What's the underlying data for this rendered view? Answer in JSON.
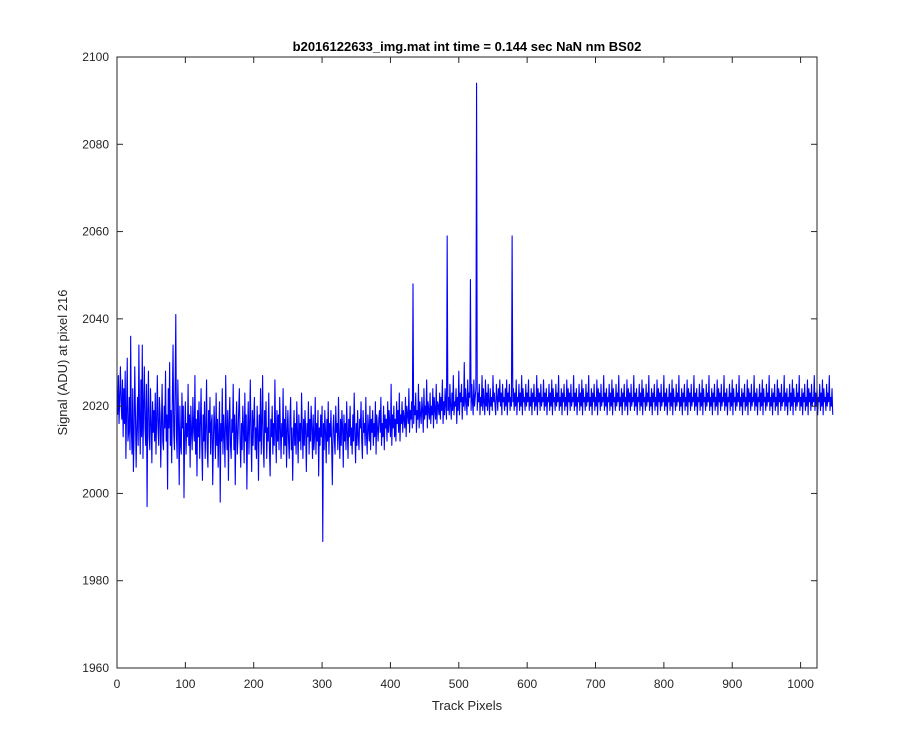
{
  "chart_data": {
    "type": "line",
    "title": "b2016122633_img.mat int time = 0.144 sec  NaN nm BS02",
    "xlabel": "Track Pixels",
    "ylabel": "Signal (ADU) at pixel 216",
    "xlim": [
      0,
      1024
    ],
    "ylim": [
      1960,
      2100
    ],
    "x_ticks": [
      0,
      100,
      200,
      300,
      400,
      500,
      600,
      700,
      800,
      900,
      1000
    ],
    "y_ticks": [
      1960,
      1980,
      2000,
      2020,
      2040,
      2060,
      2080,
      2100
    ],
    "grid": false,
    "box": true,
    "line_color": "#0000ff",
    "series": [
      {
        "x_start": 1,
        "x_step": 1,
        "values": [
          2018,
          2027,
          2016,
          2022,
          2029,
          2021,
          2017,
          2026,
          2013,
          2024,
          2016,
          2028,
          2008,
          2019,
          2031,
          2012,
          2014,
          2022,
          2010,
          2036,
          2015,
          2009,
          2024,
          2005,
          2014,
          2029,
          2018,
          2006,
          2015,
          2022,
          2011,
          2034,
          2017,
          2009,
          2026,
          2013,
          2034,
          2008,
          2020,
          2029,
          2015,
          2011,
          2025,
          1997,
          2019,
          2028,
          2013,
          2010,
          2024,
          2016,
          2007,
          2021,
          2014,
          2019,
          2012,
          2023,
          2009,
          2017,
          2027,
          2015,
          2011,
          2022,
          2018,
          2006,
          2016,
          2025,
          2012,
          2010,
          2020,
          2015,
          2028,
          2012,
          2018,
          2001,
          2024,
          2015,
          2030,
          2011,
          2019,
          2007,
          2022,
          2034,
          2014,
          2010,
          2024,
          2041,
          2013,
          2008,
          2026,
          2016,
          2002,
          2020,
          2011,
          2009,
          2023,
          2015,
          2020,
          1999,
          2014,
          2021,
          2009,
          2016,
          2013,
          2025,
          2011,
          2018,
          2006,
          2020,
          2014,
          2010,
          2022,
          2015,
          2012,
          2027,
          2009,
          2017,
          2004,
          2019,
          2013,
          2021,
          2008,
          2016,
          2024,
          2011,
          2003,
          2018,
          2012,
          2021,
          2008,
          2015,
          2026,
          2010,
          2006,
          2019,
          2014,
          2022,
          2009,
          2016,
          2018,
          2002,
          2012,
          2020,
          2015,
          2008,
          2023,
          2011,
          2017,
          2006,
          2014,
          2021,
          1998,
          2016,
          2012,
          2024,
          2009,
          2018,
          2013,
          2006,
          2027,
          2015,
          2010,
          2019,
          2003,
          2016,
          2022,
          2011,
          2008,
          2017,
          2014,
          2025,
          2010,
          2018,
          2002,
          2015,
          2021,
          2009,
          2013,
          2019,
          2024,
          2012,
          2006,
          2016,
          2010,
          2020,
          2015,
          2007,
          2023,
          2012,
          2018,
          2001,
          2014,
          2021,
          2009,
          2016,
          2026,
          2013,
          2005,
          2019,
          2011,
          2017,
          2022,
          2010,
          2015,
          2008,
          2020,
          2014,
          2003,
          2018,
          2012,
          2024,
          2009,
          2016,
          2027,
          2011,
          2006,
          2019,
          2014,
          2021,
          2008,
          2015,
          2012,
          2023,
          2010,
          2004,
          2017,
          2013,
          2020,
          2009,
          2016,
          2011,
          2026,
          2014,
          2007,
          2019,
          2012,
          2018,
          2010,
          2022,
          2015,
          2008,
          2016,
          2013,
          2024,
          2009,
          2017,
          2011,
          2020,
          2006,
          2014,
          2019,
          2012,
          2008,
          2017,
          2022,
          2010,
          2015,
          2003,
          2013,
          2019,
          2011,
          2016,
          2009,
          2021,
          2014,
          2007,
          2018,
          2012,
          2016,
          2010,
          2023,
          2015,
          2008,
          2017,
          2011,
          2019,
          2014,
          2005,
          2016,
          2013,
          2021,
          2009,
          2017,
          2012,
          2020,
          2015,
          2008,
          2018,
          2010,
          2013,
          2022,
          2009,
          2016,
          2012,
          2019,
          2004,
          2015,
          2011,
          2018,
          2013,
          2020,
          1989,
          2016,
          2010,
          2019,
          2014,
          2007,
          2017,
          2012,
          2021,
          2009,
          2016,
          2013,
          2019,
          2011,
          2002,
          2015,
          2018,
          2012,
          2009,
          2020,
          2014,
          2016,
          2010,
          2022,
          2013,
          2008,
          2017,
          2011,
          2019,
          2015,
          2006,
          2018,
          2012,
          2016,
          2010,
          2021,
          2014,
          2008,
          2017,
          2013,
          2020,
          2011,
          2015,
          2009,
          2018,
          2012,
          2023,
          2014,
          2007,
          2016,
          2011,
          2019,
          2013,
          2010,
          2017,
          2015,
          2021,
          2012,
          2008,
          2019,
          2014,
          2016,
          2011,
          2022,
          2013,
          2009,
          2018,
          2015,
          2012,
          2020,
          2010,
          2017,
          2014,
          2019,
          2011,
          2016,
          2013,
          2021,
          2009,
          2018,
          2015,
          2012,
          2017,
          2019,
          2014,
          2022,
          2011,
          2016,
          2013,
          2020,
          2010,
          2018,
          2015,
          2017,
          2012,
          2021,
          2014,
          2019,
          2016,
          2013,
          2025,
          2011,
          2018,
          2015,
          2020,
          2013,
          2017,
          2012,
          2021,
          2016,
          2019,
          2014,
          2023,
          2012,
          2018,
          2016,
          2021,
          2014,
          2019,
          2017,
          2015,
          2022,
          2013,
          2020,
          2018,
          2016,
          2024,
          2014,
          2019,
          2017,
          2021,
          2015,
          2048,
          2016,
          2020,
          2018,
          2023,
          2014,
          2019,
          2017,
          2025,
          2015,
          2021,
          2018,
          2016,
          2022,
          2019,
          2014,
          2024,
          2017,
          2020,
          2018,
          2026,
          2015,
          2021,
          2019,
          2017,
          2023,
          2016,
          2020,
          2018,
          2024,
          2015,
          2022,
          2019,
          2017,
          2025,
          2016,
          2021,
          2020,
          2018,
          2023,
          2017,
          2022,
          2019,
          2026,
          2016,
          2021,
          2018,
          2024,
          2020,
          2017,
          2059,
          2019,
          2022,
          2018,
          2025,
          2020,
          2017,
          2023,
          2019,
          2027,
          2018,
          2021,
          2020,
          2024,
          2016,
          2022,
          2019,
          2028,
          2018,
          2023,
          2021,
          2025,
          2017,
          2022,
          2020,
          2030,
          2019,
          2024,
          2021,
          2018,
          2026,
          2020,
          2023,
          2022,
          2049,
          2019,
          2025,
          2021,
          2018,
          2026,
          2020,
          2022,
          2024,
          2094,
          2019,
          2023,
          2021,
          2025,
          2018,
          2022,
          2020,
          2027,
          2019,
          2024,
          2021,
          2018,
          2026,
          2020,
          2023,
          2019,
          2025,
          2021,
          2018,
          2024,
          2020,
          2022,
          2019,
          2027,
          2021,
          2023,
          2020,
          2018,
          2025,
          2022,
          2019,
          2024,
          2021,
          2026,
          2020,
          2023,
          2018,
          2025,
          2021,
          2022,
          2019,
          2024,
          2020,
          2026,
          2018,
          2023,
          2021,
          2025,
          2019,
          2022,
          2020,
          2059,
          2021,
          2024,
          2019,
          2023,
          2020,
          2026,
          2018,
          2022,
          2021,
          2025,
          2019,
          2023,
          2020,
          2027,
          2018,
          2024,
          2021,
          2022,
          2019,
          2025,
          2020,
          2023,
          2021,
          2026,
          2019,
          2022,
          2020,
          2024,
          2018,
          2023,
          2021,
          2025,
          2019,
          2022,
          2020,
          2027,
          2018,
          2024,
          2021,
          2023,
          2019,
          2025,
          2020,
          2022,
          2021,
          2026,
          2019,
          2023,
          2020,
          2024,
          2018,
          2022,
          2021,
          2025,
          2019,
          2023,
          2020,
          2026,
          2018,
          2024,
          2021,
          2022,
          2019,
          2025,
          2020,
          2023,
          2021,
          2027,
          2019,
          2022,
          2020,
          2024,
          2018,
          2023,
          2021,
          2025,
          2019,
          2022,
          2020,
          2026,
          2018,
          2024,
          2021,
          2023,
          2019,
          2025,
          2020,
          2022,
          2021,
          2027,
          2019,
          2023,
          2020,
          2024,
          2018,
          2022,
          2021,
          2025,
          2019,
          2023,
          2020,
          2026,
          2018,
          2024,
          2021,
          2022,
          2019,
          2025,
          2020,
          2023,
          2021,
          2027,
          2019,
          2022,
          2020,
          2024,
          2018,
          2023,
          2021,
          2025,
          2019,
          2022,
          2020,
          2026,
          2018,
          2024,
          2021,
          2023,
          2019,
          2025,
          2020,
          2022,
          2021,
          2027,
          2019,
          2023,
          2020,
          2024,
          2018,
          2022,
          2021,
          2025,
          2019,
          2023,
          2020,
          2026,
          2018,
          2024,
          2021,
          2022,
          2019,
          2025,
          2020,
          2023,
          2021,
          2027,
          2019,
          2022,
          2020,
          2024,
          2018,
          2023,
          2021,
          2025,
          2019,
          2022,
          2020,
          2026,
          2018,
          2024,
          2021,
          2023,
          2019,
          2025,
          2020,
          2022,
          2021,
          2027,
          2019,
          2023,
          2020,
          2024,
          2018,
          2022,
          2021,
          2025,
          2019,
          2023,
          2020,
          2026,
          2018,
          2024,
          2021,
          2022,
          2019,
          2025,
          2020,
          2023,
          2021,
          2027,
          2019,
          2022,
          2020,
          2024,
          2018,
          2023,
          2021,
          2025,
          2019,
          2022,
          2020,
          2026,
          2018,
          2024,
          2021,
          2023,
          2019,
          2025,
          2020,
          2022,
          2021,
          2027,
          2019,
          2023,
          2020,
          2024,
          2018,
          2022,
          2021,
          2025,
          2019,
          2023,
          2020,
          2026,
          2018,
          2024,
          2021,
          2022,
          2019,
          2025,
          2020,
          2023,
          2021,
          2027,
          2019,
          2022,
          2020,
          2024,
          2018,
          2023,
          2021,
          2025,
          2019,
          2022,
          2020,
          2026,
          2018,
          2024,
          2021,
          2023,
          2019,
          2025,
          2020,
          2022,
          2021,
          2027,
          2019,
          2023,
          2020,
          2024,
          2018,
          2022,
          2021,
          2025,
          2019,
          2023,
          2020,
          2026,
          2018,
          2024,
          2021,
          2022,
          2019,
          2025,
          2020,
          2023,
          2021,
          2027,
          2019,
          2022,
          2020,
          2024,
          2018,
          2023,
          2021,
          2025,
          2019,
          2022,
          2020,
          2026,
          2018,
          2024,
          2021,
          2023,
          2019,
          2025,
          2020,
          2022,
          2021,
          2027,
          2019,
          2023,
          2020,
          2024,
          2018,
          2022,
          2021,
          2025,
          2019,
          2023,
          2020,
          2026,
          2018,
          2024,
          2021,
          2022,
          2019,
          2025,
          2020,
          2023,
          2021,
          2027,
          2019,
          2022,
          2020,
          2024,
          2018,
          2023,
          2021,
          2025,
          2019,
          2022,
          2020,
          2026,
          2018,
          2024,
          2021,
          2023,
          2019,
          2025,
          2020,
          2022,
          2021,
          2027,
          2019,
          2023,
          2020,
          2024,
          2018,
          2022,
          2021,
          2025,
          2019,
          2023,
          2020,
          2026,
          2018,
          2024,
          2021,
          2022,
          2019,
          2025,
          2020,
          2023,
          2021,
          2027,
          2019,
          2022,
          2020,
          2024,
          2018,
          2023,
          2021,
          2025,
          2019,
          2022,
          2020,
          2026,
          2018,
          2024,
          2021,
          2023,
          2019,
          2025,
          2020,
          2022,
          2021,
          2027,
          2019,
          2023,
          2020,
          2024,
          2018,
          2022,
          2021,
          2025,
          2019,
          2023,
          2020,
          2026,
          2018,
          2024,
          2021,
          2022,
          2019,
          2025,
          2020,
          2023,
          2021,
          2027,
          2019,
          2022,
          2020,
          2024,
          2018,
          2023,
          2021,
          2025,
          2019,
          2022,
          2020,
          2026,
          2018,
          2024,
          2021,
          2023,
          2019,
          2025,
          2020,
          2022,
          2021,
          2027,
          2019,
          2023,
          2020,
          2024,
          2018,
          2022,
          2021,
          2025,
          2019,
          2023,
          2020,
          2026,
          2018,
          2024,
          2021,
          2022,
          2019,
          2025,
          2020,
          2023,
          2021,
          2027,
          2019,
          2022,
          2020,
          2024,
          2018
        ]
      }
    ]
  }
}
